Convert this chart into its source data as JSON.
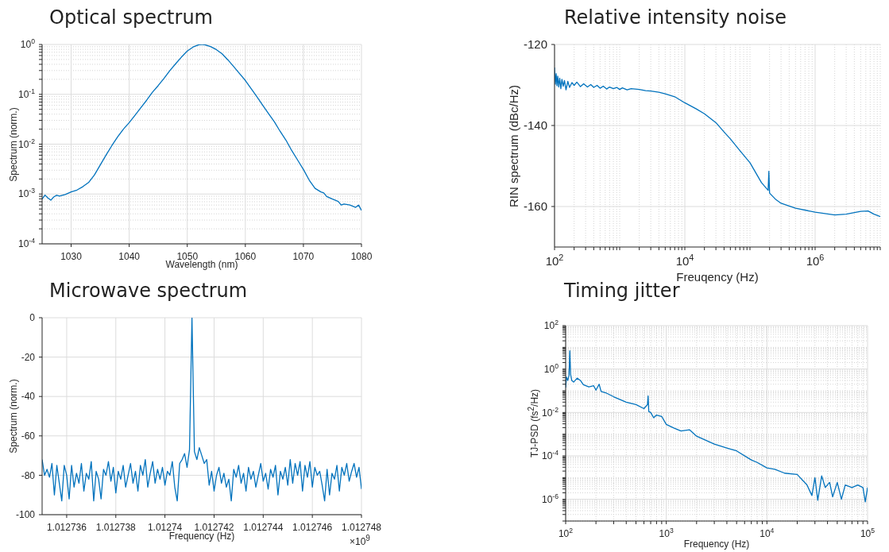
{
  "chart_data": [
    {
      "type": "line",
      "title": "Optical spectrum",
      "xlabel": "Wavelength (nm)",
      "ylabel": "Spectrum (norm.)",
      "log": "y",
      "grid": true,
      "xlim": [
        1025,
        1080
      ],
      "xticks": [
        1030,
        1040,
        1050,
        1060,
        1070,
        1080
      ],
      "ylim": [
        0.0001,
        1
      ],
      "yticks": [
        {
          "value": 0.0001,
          "label": "10$^{-4}$"
        },
        {
          "value": 0.0002,
          "label": null
        },
        {
          "value": 0.0003,
          "label": null
        },
        {
          "value": 0.0004,
          "label": null
        },
        {
          "value": 0.0005,
          "label": null
        },
        {
          "value": 0.0006,
          "label": null
        },
        {
          "value": 0.0007,
          "label": null
        },
        {
          "value": 0.0008,
          "label": null
        },
        {
          "value": 0.0009,
          "label": null
        },
        {
          "value": 0.001,
          "label": "10$^{-3}$"
        },
        {
          "value": 0.002,
          "label": null
        },
        {
          "value": 0.003,
          "label": null
        },
        {
          "value": 0.004,
          "label": null
        },
        {
          "value": 0.005,
          "label": null
        },
        {
          "value": 0.006,
          "label": null
        },
        {
          "value": 0.007,
          "label": null
        },
        {
          "value": 0.008,
          "label": null
        },
        {
          "value": 0.009,
          "label": null
        },
        {
          "value": 0.01,
          "label": "10$^{-2}$"
        },
        {
          "value": 0.02,
          "label": null
        },
        {
          "value": 0.03,
          "label": null
        },
        {
          "value": 0.04,
          "label": null
        },
        {
          "value": 0.05,
          "label": null
        },
        {
          "value": 0.06,
          "label": null
        },
        {
          "value": 0.07,
          "label": null
        },
        {
          "value": 0.08,
          "label": null
        },
        {
          "value": 0.09,
          "label": null
        },
        {
          "value": 0.1,
          "label": "10$^{-1}$"
        },
        {
          "value": 0.2,
          "label": null
        },
        {
          "value": 0.3,
          "label": null
        },
        {
          "value": 0.4,
          "label": null
        },
        {
          "value": 0.5,
          "label": null
        },
        {
          "value": 0.6,
          "label": null
        },
        {
          "value": 0.7,
          "label": null
        },
        {
          "value": 0.8,
          "label": null
        },
        {
          "value": 0.9,
          "label": null
        },
        {
          "value": 1,
          "label": "10$^{0}$"
        }
      ],
      "x": [
        1025,
        1025.5,
        1026,
        1026.5,
        1027,
        1027.5,
        1028,
        1029,
        1030,
        1031,
        1032,
        1033,
        1034,
        1035,
        1036,
        1037,
        1038,
        1039,
        1040,
        1041,
        1042,
        1043,
        1044,
        1045,
        1046,
        1047,
        1048,
        1049,
        1050,
        1051,
        1052,
        1052.5,
        1053,
        1054,
        1055,
        1056,
        1057,
        1058,
        1059,
        1060,
        1061,
        1062,
        1063,
        1064,
        1065,
        1066,
        1067,
        1068,
        1069,
        1070,
        1071,
        1072,
        1073,
        1073.5,
        1074,
        1075,
        1076,
        1076.5,
        1077,
        1078,
        1079,
        1079.5,
        1080
      ],
      "series": [
        {
          "color": "#0072bd",
          "values": [
            0.00079,
            0.00095,
            0.00083,
            0.00075,
            0.00087,
            0.00094,
            0.00091,
            0.00098,
            0.0011,
            0.0012,
            0.0014,
            0.0017,
            0.0024,
            0.0038,
            0.006,
            0.0093,
            0.014,
            0.02,
            0.027,
            0.038,
            0.054,
            0.076,
            0.11,
            0.15,
            0.21,
            0.3,
            0.41,
            0.56,
            0.74,
            0.89,
            0.99,
            1,
            0.99,
            0.91,
            0.79,
            0.65,
            0.49,
            0.36,
            0.26,
            0.19,
            0.13,
            0.089,
            0.06,
            0.041,
            0.028,
            0.018,
            0.012,
            0.0074,
            0.0048,
            0.0031,
            0.0019,
            0.0013,
            0.0011,
            0.00105,
            0.00089,
            0.00079,
            0.00071,
            0.0006,
            0.00063,
            0.0006,
            0.00054,
            0.0006,
            0.00047
          ]
        }
      ]
    },
    {
      "type": "line",
      "title": "Relative intensity noise",
      "xlabel": "Freuqency (Hz)",
      "ylabel": "RIN spectrum (dBc/Hz)",
      "log": "x",
      "grid": true,
      "xlim": [
        100,
        10000000
      ],
      "xticks": [
        {
          "value": 100,
          "label": "10$^{2}$"
        },
        {
          "value": 200,
          "label": null
        },
        {
          "value": 300,
          "label": null
        },
        {
          "value": 400,
          "label": null
        },
        {
          "value": 500,
          "label": null
        },
        {
          "value": 600,
          "label": null
        },
        {
          "value": 700,
          "label": null
        },
        {
          "value": 800,
          "label": null
        },
        {
          "value": 900,
          "label": null
        },
        {
          "value": 1000,
          "label": null
        },
        {
          "value": 2000,
          "label": null
        },
        {
          "value": 3000,
          "label": null
        },
        {
          "value": 4000,
          "label": null
        },
        {
          "value": 5000,
          "label": null
        },
        {
          "value": 6000,
          "label": null
        },
        {
          "value": 7000,
          "label": null
        },
        {
          "value": 8000,
          "label": null
        },
        {
          "value": 9000,
          "label": null
        },
        {
          "value": 10000,
          "label": "10$^{4}$"
        },
        {
          "value": 20000,
          "label": null
        },
        {
          "value": 30000,
          "label": null
        },
        {
          "value": 40000,
          "label": null
        },
        {
          "value": 50000,
          "label": null
        },
        {
          "value": 60000,
          "label": null
        },
        {
          "value": 70000,
          "label": null
        },
        {
          "value": 80000,
          "label": null
        },
        {
          "value": 90000,
          "label": null
        },
        {
          "value": 100000,
          "label": null
        },
        {
          "value": 200000,
          "label": null
        },
        {
          "value": 300000,
          "label": null
        },
        {
          "value": 400000,
          "label": null
        },
        {
          "value": 500000,
          "label": null
        },
        {
          "value": 600000,
          "label": null
        },
        {
          "value": 700000,
          "label": null
        },
        {
          "value": 800000,
          "label": null
        },
        {
          "value": 900000,
          "label": null
        },
        {
          "value": 1000000,
          "label": "10$^{6}$"
        },
        {
          "value": 2000000,
          "label": null
        },
        {
          "value": 3000000,
          "label": null
        },
        {
          "value": 4000000,
          "label": null
        },
        {
          "value": 5000000,
          "label": null
        },
        {
          "value": 6000000,
          "label": null
        },
        {
          "value": 7000000,
          "label": null
        },
        {
          "value": 8000000,
          "label": null
        },
        {
          "value": 9000000,
          "label": null
        },
        {
          "value": 10000000,
          "label": null
        }
      ],
      "ylim": [
        -170,
        -120
      ],
      "yticks": [
        -160,
        -140,
        -120
      ],
      "x": [
        100,
        103,
        106,
        109,
        112,
        116,
        120,
        125,
        130,
        136,
        142,
        150,
        160,
        170,
        185,
        200,
        220,
        250,
        280,
        320,
        360,
        400,
        450,
        500,
        560,
        630,
        700,
        800,
        900,
        1000,
        1100,
        1300,
        1500,
        2000,
        2500,
        3000,
        4000,
        5000,
        7000,
        10000,
        15000,
        20000,
        30000,
        40000,
        50000,
        70000,
        100000,
        150000,
        190000,
        195000,
        200000,
        250000,
        300000,
        500000,
        1000000,
        2000000,
        3000000,
        5000000,
        6500000,
        8000000,
        10000000
      ],
      "series": [
        {
          "color": "#0072bd",
          "values": [
            -125.7,
            -129.8,
            -127.2,
            -130.2,
            -127.8,
            -130.5,
            -128.3,
            -130.9,
            -128.6,
            -130.3,
            -128.9,
            -131.2,
            -129.1,
            -130.6,
            -129.4,
            -130.1,
            -129.3,
            -130.4,
            -129.7,
            -130.5,
            -129.9,
            -130.6,
            -130.1,
            -130.8,
            -130.3,
            -131,
            -130.5,
            -130.9,
            -130.6,
            -131.1,
            -130.7,
            -131.2,
            -130.9,
            -131.1,
            -131.4,
            -131.5,
            -131.8,
            -132.2,
            -132.9,
            -134.4,
            -135.9,
            -137.1,
            -139.3,
            -141.6,
            -143.3,
            -146.2,
            -149.2,
            -154.1,
            -156,
            -151.3,
            -156.7,
            -158.3,
            -159.2,
            -160.4,
            -161.4,
            -162.1,
            -161.9,
            -161.2,
            -161.1,
            -161.9,
            -162.5
          ]
        }
      ]
    },
    {
      "type": "line",
      "title": "Microwave spectrum",
      "xlabel": "Frequency (Hz)",
      "ylabel": "Spectrum (norm.)",
      "grid": true,
      "annotations": [
        "×10$^{9}$"
      ],
      "xlim": [
        1.012735,
        1.012748
      ],
      "xticks": [
        1.012736,
        1.012738,
        1.01274,
        1.012742,
        1.012744,
        1.012746,
        1.012748
      ],
      "ylim": [
        -100,
        0
      ],
      "yticks": [
        -100,
        -80,
        -60,
        -40,
        -20,
        0
      ],
      "x": [
        1.012735,
        1.0127351,
        1.0127352,
        1.0127353,
        1.0127354,
        1.0127355,
        1.0127356,
        1.0127357,
        1.0127358,
        1.0127359,
        1.012736,
        1.0127361,
        1.0127362,
        1.0127363,
        1.0127364,
        1.0127365,
        1.0127366,
        1.0127367,
        1.0127368,
        1.0127369,
        1.012737,
        1.0127371,
        1.0127372,
        1.0127373,
        1.0127374,
        1.0127375,
        1.0127376,
        1.0127377,
        1.0127378,
        1.0127379,
        1.012738,
        1.0127381,
        1.0127382,
        1.0127383,
        1.0127384,
        1.0127385,
        1.0127386,
        1.0127387,
        1.0127388,
        1.0127389,
        1.012739,
        1.0127391,
        1.0127392,
        1.0127393,
        1.0127394,
        1.0127395,
        1.0127396,
        1.0127397,
        1.0127398,
        1.0127399,
        1.01274,
        1.0127401,
        1.0127402,
        1.0127403,
        1.0127404,
        1.0127405,
        1.0127406,
        1.0127407,
        1.0127408,
        1.0127409,
        1.012741,
        1.0127411,
        1.0127412,
        1.0127413,
        1.0127414,
        1.0127415,
        1.0127416,
        1.0127417,
        1.0127418,
        1.0127419,
        1.012742,
        1.0127421,
        1.0127422,
        1.0127423,
        1.0127424,
        1.0127425,
        1.0127426,
        1.0127427,
        1.0127428,
        1.0127429,
        1.012743,
        1.0127431,
        1.0127432,
        1.0127433,
        1.0127434,
        1.0127435,
        1.0127436,
        1.0127437,
        1.0127438,
        1.0127439,
        1.012744,
        1.0127441,
        1.0127442,
        1.0127443,
        1.0127444,
        1.0127445,
        1.0127446,
        1.0127447,
        1.0127448,
        1.0127449,
        1.012745,
        1.0127451,
        1.0127452,
        1.0127453,
        1.0127454,
        1.0127455,
        1.0127456,
        1.0127457,
        1.0127458,
        1.0127459,
        1.012746,
        1.0127461,
        1.0127462,
        1.0127463,
        1.0127464,
        1.0127465,
        1.0127466,
        1.0127467,
        1.0127468,
        1.0127469,
        1.012747,
        1.0127471,
        1.0127472,
        1.0127473,
        1.0127474,
        1.0127475,
        1.0127476,
        1.0127477,
        1.0127478,
        1.0127479,
        1.012748
      ],
      "series": [
        {
          "color": "#0072bd",
          "values": [
            -72,
            -80,
            -77,
            -81,
            -74,
            -90,
            -75,
            -84,
            -93,
            -75,
            -80,
            -92,
            -75,
            -86,
            -79,
            -84,
            -74,
            -88,
            -79,
            -82,
            -73,
            -93,
            -78,
            -82,
            -92,
            -77,
            -80,
            -73,
            -83,
            -76,
            -89,
            -78,
            -82,
            -75,
            -86,
            -80,
            -74,
            -84,
            -78,
            -88,
            -75,
            -80,
            -72,
            -86,
            -79,
            -73,
            -84,
            -77,
            -82,
            -76,
            -85,
            -78,
            -80,
            -73,
            -86,
            -93,
            -74,
            -72,
            -69,
            -76,
            -67,
            0,
            -68,
            -72,
            -66,
            -70,
            -74,
            -72,
            -85,
            -78,
            -88,
            -80,
            -76,
            -84,
            -79,
            -86,
            -82,
            -93,
            -77,
            -81,
            -75,
            -84,
            -79,
            -88,
            -76,
            -82,
            -78,
            -86,
            -80,
            -74,
            -83,
            -79,
            -87,
            -77,
            -81,
            -75,
            -90,
            -78,
            -82,
            -76,
            -85,
            -72,
            -84,
            -74,
            -80,
            -73,
            -88,
            -75,
            -81,
            -73,
            -86,
            -76,
            -80,
            -78,
            -85,
            -93,
            -77,
            -90,
            -79,
            -82,
            -75,
            -88,
            -76,
            -80,
            -74,
            -83,
            -78,
            -74,
            -81,
            -76,
            -87
          ]
        }
      ]
    },
    {
      "type": "line",
      "title": "Timing jitter",
      "xlabel": "Frequency (Hz)",
      "ylabel": "TJ-PSD (fs$^{2}$/Hz)",
      "log": "xy",
      "grid": true,
      "xlim": [
        100,
        100000
      ],
      "xticks": [
        {
          "value": 100,
          "label": "10$^{2}$"
        },
        {
          "value": 200,
          "label": null
        },
        {
          "value": 300,
          "label": null
        },
        {
          "value": 400,
          "label": null
        },
        {
          "value": 500,
          "label": null
        },
        {
          "value": 600,
          "label": null
        },
        {
          "value": 700,
          "label": null
        },
        {
          "value": 800,
          "label": null
        },
        {
          "value": 900,
          "label": null
        },
        {
          "value": 1000,
          "label": "10$^{3}$"
        },
        {
          "value": 2000,
          "label": null
        },
        {
          "value": 3000,
          "label": null
        },
        {
          "value": 4000,
          "label": null
        },
        {
          "value": 5000,
          "label": null
        },
        {
          "value": 6000,
          "label": null
        },
        {
          "value": 7000,
          "label": null
        },
        {
          "value": 8000,
          "label": null
        },
        {
          "value": 9000,
          "label": null
        },
        {
          "value": 10000,
          "label": "10$^{4}$"
        },
        {
          "value": 20000,
          "label": null
        },
        {
          "value": 30000,
          "label": null
        },
        {
          "value": 40000,
          "label": null
        },
        {
          "value": 50000,
          "label": null
        },
        {
          "value": 60000,
          "label": null
        },
        {
          "value": 70000,
          "label": null
        },
        {
          "value": 80000,
          "label": null
        },
        {
          "value": 90000,
          "label": null
        },
        {
          "value": 100000,
          "label": "10$^{5}$"
        }
      ],
      "ylim": [
        1e-07,
        100
      ],
      "yticks": [
        {
          "value": 1e-07,
          "label": null
        },
        {
          "value": 2e-07,
          "label": null
        },
        {
          "value": 3e-07,
          "label": null
        },
        {
          "value": 4e-07,
          "label": null
        },
        {
          "value": 5e-07,
          "label": null
        },
        {
          "value": 6e-07,
          "label": null
        },
        {
          "value": 7e-07,
          "label": null
        },
        {
          "value": 8e-07,
          "label": null
        },
        {
          "value": 9e-07,
          "label": null
        },
        {
          "value": 1e-06,
          "label": "10$^{-6}$"
        },
        {
          "value": 2e-06,
          "label": null
        },
        {
          "value": 3e-06,
          "label": null
        },
        {
          "value": 4e-06,
          "label": null
        },
        {
          "value": 5e-06,
          "label": null
        },
        {
          "value": 6e-06,
          "label": null
        },
        {
          "value": 7e-06,
          "label": null
        },
        {
          "value": 8e-06,
          "label": null
        },
        {
          "value": 9e-06,
          "label": null
        },
        {
          "value": 1e-05,
          "label": null
        },
        {
          "value": 2e-05,
          "label": null
        },
        {
          "value": 3e-05,
          "label": null
        },
        {
          "value": 4e-05,
          "label": null
        },
        {
          "value": 5e-05,
          "label": null
        },
        {
          "value": 6e-05,
          "label": null
        },
        {
          "value": 7e-05,
          "label": null
        },
        {
          "value": 8e-05,
          "label": null
        },
        {
          "value": 9e-05,
          "label": null
        },
        {
          "value": 0.0001,
          "label": "10$^{-4}$"
        },
        {
          "value": 0.0002,
          "label": null
        },
        {
          "value": 0.0003,
          "label": null
        },
        {
          "value": 0.0004,
          "label": null
        },
        {
          "value": 0.0005,
          "label": null
        },
        {
          "value": 0.0006,
          "label": null
        },
        {
          "value": 0.0007,
          "label": null
        },
        {
          "value": 0.0008,
          "label": null
        },
        {
          "value": 0.0009,
          "label": null
        },
        {
          "value": 0.001,
          "label": null
        },
        {
          "value": 0.002,
          "label": null
        },
        {
          "value": 0.003,
          "label": null
        },
        {
          "value": 0.004,
          "label": null
        },
        {
          "value": 0.005,
          "label": null
        },
        {
          "value": 0.006,
          "label": null
        },
        {
          "value": 0.007,
          "label": null
        },
        {
          "value": 0.008,
          "label": null
        },
        {
          "value": 0.009,
          "label": null
        },
        {
          "value": 0.01,
          "label": "10$^{-2}$"
        },
        {
          "value": 0.02,
          "label": null
        },
        {
          "value": 0.03,
          "label": null
        },
        {
          "value": 0.04,
          "label": null
        },
        {
          "value": 0.05,
          "label": null
        },
        {
          "value": 0.06,
          "label": null
        },
        {
          "value": 0.07,
          "label": null
        },
        {
          "value": 0.08,
          "label": null
        },
        {
          "value": 0.09,
          "label": null
        },
        {
          "value": 0.1,
          "label": null
        },
        {
          "value": 0.2,
          "label": null
        },
        {
          "value": 0.3,
          "label": null
        },
        {
          "value": 0.4,
          "label": null
        },
        {
          "value": 0.5,
          "label": null
        },
        {
          "value": 0.6,
          "label": null
        },
        {
          "value": 0.7,
          "label": null
        },
        {
          "value": 0.8,
          "label": null
        },
        {
          "value": 0.9,
          "label": null
        },
        {
          "value": 1,
          "label": "10$^{0}$"
        },
        {
          "value": 2,
          "label": null
        },
        {
          "value": 3,
          "label": null
        },
        {
          "value": 4,
          "label": null
        },
        {
          "value": 5,
          "label": null
        },
        {
          "value": 6,
          "label": null
        },
        {
          "value": 7,
          "label": null
        },
        {
          "value": 8,
          "label": null
        },
        {
          "value": 9,
          "label": null
        },
        {
          "value": 10,
          "label": null
        },
        {
          "value": 20,
          "label": null
        },
        {
          "value": 30,
          "label": null
        },
        {
          "value": 40,
          "label": null
        },
        {
          "value": 50,
          "label": null
        },
        {
          "value": 60,
          "label": null
        },
        {
          "value": 70,
          "label": null
        },
        {
          "value": 80,
          "label": null
        },
        {
          "value": 90,
          "label": null
        },
        {
          "value": 100,
          "label": "10$^{2}$"
        }
      ],
      "x": [
        100,
        102,
        105,
        108,
        110,
        112,
        115,
        120,
        130,
        140,
        150,
        170,
        190,
        200,
        215,
        225,
        250,
        300,
        400,
        500,
        600,
        650,
        660,
        670,
        700,
        750,
        800,
        900,
        1000,
        1200,
        1400,
        1700,
        2000,
        3000,
        4000,
        5000,
        7000,
        8000,
        10000,
        12000,
        15000,
        20000,
        25000,
        28000,
        30000,
        32000,
        35000,
        38000,
        42000,
        45000,
        50000,
        55000,
        60000,
        70000,
        80000,
        90000,
        95000,
        100000
      ],
      "series": [
        {
          "color": "#0072bd",
          "values": [
            0.14,
            0.43,
            0.3,
            0.5,
            7,
            0.57,
            0.3,
            0.25,
            0.38,
            0.3,
            0.19,
            0.15,
            0.17,
            0.107,
            0.2,
            0.093,
            0.081,
            0.053,
            0.03,
            0.023,
            0.015,
            0.023,
            0.058,
            0.011,
            0.01,
            0.0057,
            0.0076,
            0.0066,
            0.0028,
            0.0019,
            0.0014,
            0.0016,
            0.00081,
            0.00035,
            0.00023,
            0.00017,
            6.5e-05,
            5e-05,
            2.8e-05,
            2.4e-05,
            1.6e-05,
            1.4e-05,
            4.6e-06,
            1.5e-06,
            1e-05,
            9e-07,
            1.2e-05,
            3.5e-06,
            6e-06,
            1.3e-06,
            6e-06,
            1e-06,
            4.6e-06,
            3.5e-06,
            4.6e-06,
            3.5e-06,
            7.6e-07,
            3.5e-06
          ]
        }
      ]
    }
  ]
}
